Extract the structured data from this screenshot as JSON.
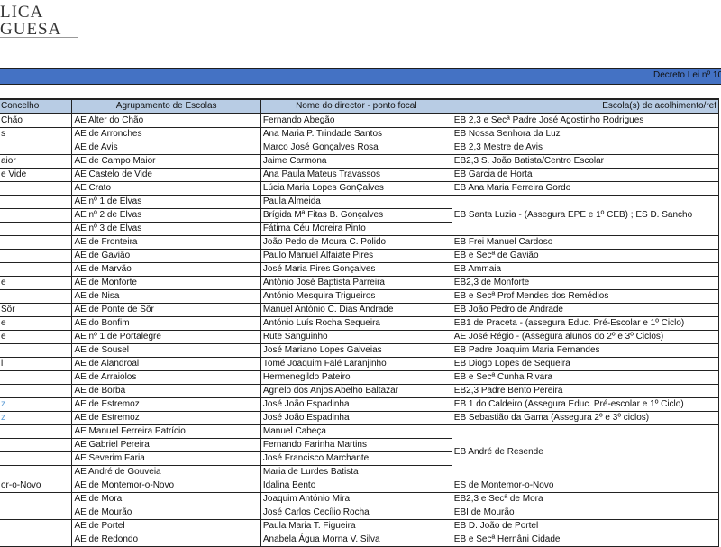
{
  "logo": {
    "line1": "LICA",
    "line2": "GUESA"
  },
  "banner": {
    "title": "Decreto Lei nº 10"
  },
  "table": {
    "headers": [
      "Concelho",
      "Agrupamento de Escolas",
      "Nome do director - ponto focal",
      "Escola(s) de acolhimento/ref"
    ],
    "rows": [
      {
        "concelho": "Chão",
        "agrupamento": "AE Alter do Chão",
        "director": "Fernando Abegão"
      },
      {
        "concelho": "s",
        "agrupamento": "AE de Arronches",
        "director": "Ana Maria P. Trindade Santos"
      },
      {
        "concelho": "",
        "agrupamento": "AE de Avis",
        "director": "Marco José Gonçalves Rosa"
      },
      {
        "concelho": "aior",
        "agrupamento": "AE de Campo Maior",
        "director": "Jaime Carmona"
      },
      {
        "concelho": "e Vide",
        "agrupamento": "AE Castelo de Vide",
        "director": "Ana Paula Mateus Travassos"
      },
      {
        "concelho": "",
        "agrupamento": "AE Crato",
        "director": "Lúcia Maria Lopes GonÇalves"
      },
      {
        "concelho": "",
        "agrupamento": "AE nº 1 de Elvas",
        "director": "Paula Almeida"
      },
      {
        "concelho": "",
        "agrupamento": "AE nº 2 de Elvas",
        "director": "Brígida Mª Fitas B. Gonçalves"
      },
      {
        "concelho": "",
        "agrupamento": "AE nº 3 de Elvas",
        "director": "Fátima Céu Moreira Pinto"
      },
      {
        "concelho": "",
        "agrupamento": "AE de Fronteira",
        "director": "João Pedo de Moura C. Polido"
      },
      {
        "concelho": "",
        "agrupamento": "AE de Gavião",
        "director": "Paulo Manuel Alfaiate Pires"
      },
      {
        "concelho": "",
        "agrupamento": "AE de Marvão",
        "director": "José Maria Pires Gonçalves"
      },
      {
        "concelho": "e",
        "agrupamento": "AE de Monforte",
        "director": "António José Baptista Parreira"
      },
      {
        "concelho": "",
        "agrupamento": "AE de Nisa",
        "director": "António Mesquira Trigueiros"
      },
      {
        "concelho": "Sôr",
        "agrupamento": "AE de Ponte de Sôr",
        "director": "Manuel António C. Dias Andrade"
      },
      {
        "concelho": "e",
        "agrupamento": "AE do Bonfim",
        "director": "António Luís Rocha Sequeira"
      },
      {
        "concelho": "e",
        "agrupamento": "AE nº 1 de Portalegre",
        "director": "Rute Sanguinho"
      },
      {
        "concelho": "",
        "agrupamento": "AE de Sousel",
        "director": "José Mariano Lopes Galveias"
      },
      {
        "concelho": "l",
        "agrupamento": "AE de Alandroal",
        "director": "Tomé Joaquim Falé Laranjinho"
      },
      {
        "concelho": "",
        "agrupamento": "AE de Arraiolos",
        "director": "Hermenegildo Pateiro"
      },
      {
        "concelho": "",
        "agrupamento": "AE de Borba",
        "director": "Agnelo dos Anjos Abelho Baltazar"
      },
      {
        "concelho": "z",
        "agrupamento": "AE de Estremoz",
        "director": "José João Espadinha"
      },
      {
        "concelho": "z",
        "agrupamento": "AE de Estremoz",
        "director": "José João Espadinha"
      },
      {
        "concelho": "",
        "agrupamento": "AE Manuel Ferreira Patrício",
        "director": "Manuel Cabeça"
      },
      {
        "concelho": "",
        "agrupamento": "AE Gabriel Pereira",
        "director": "Fernando Farinha Martins"
      },
      {
        "concelho": "",
        "agrupamento": "AE Severim Faria",
        "director": "José Francisco Marchante"
      },
      {
        "concelho": "",
        "agrupamento": "AE André de Gouveia",
        "director": "Maria de Lurdes Batista"
      },
      {
        "concelho": "or-o-Novo",
        "agrupamento": "AE de Montemor-o-Novo",
        "director": "Idalina Bento"
      },
      {
        "concelho": "",
        "agrupamento": "AE de Mora",
        "director": "Joaquim António Mira"
      },
      {
        "concelho": "",
        "agrupamento": "AE de Mourão",
        "director": "José Carlos Cecílio Rocha"
      },
      {
        "concelho": "",
        "agrupamento": "AE de Portel",
        "director": "Paula Maria T. Figueira"
      },
      {
        "concelho": "",
        "agrupamento": "AE de Redondo",
        "director": "Anabela Água Morna V. Silva"
      }
    ],
    "escolas": [
      {
        "text": "EB 2,3 e Secª Padre José Agostinho Rodrigues",
        "rows": 1
      },
      {
        "text": "EB Nossa Senhora da Luz",
        "rows": 1
      },
      {
        "text": "EB 2,3 Mestre de Avis",
        "rows": 1
      },
      {
        "text": "EB2,3 S. João Batista/Centro Escolar",
        "rows": 1
      },
      {
        "text": "EB Garcia de Horta",
        "rows": 1
      },
      {
        "text": "EB Ana Maria Ferreira Gordo",
        "rows": 1
      },
      {
        "text": "EB Santa Luzia - (Assegura EPE e 1º CEB) ; ES D. Sancho",
        "rows": 3
      },
      {
        "text": "EB Frei Manuel Cardoso",
        "rows": 1
      },
      {
        "text": "EB e Secª de Gavião",
        "rows": 1
      },
      {
        "text": "EB Ammaia",
        "rows": 1
      },
      {
        "text": "EB2,3 de Monforte",
        "rows": 1
      },
      {
        "text": "EB e Secª Prof Mendes dos Remédios",
        "rows": 1
      },
      {
        "text": "EB João Pedro de Andrade",
        "rows": 1
      },
      {
        "text": "EB1 de Praceta - (assegura Educ. Pré-Escolar e 1º Ciclo)",
        "rows": 1
      },
      {
        "text": "AE José Régio - (Assegura alunos do 2º e 3º Ciclos)",
        "rows": 1
      },
      {
        "text": "EB Padre Joaquim Maria Fernandes",
        "rows": 1
      },
      {
        "text": "EB Diogo Lopes de Sequeira",
        "rows": 1
      },
      {
        "text": "EB e Secª Cunha Rivara",
        "rows": 1
      },
      {
        "text": "EB2,3 Padre Bento Pereira",
        "rows": 1
      },
      {
        "text": "EB 1 do Caldeiro (Assegura Educ. Pré-escolar e 1º Ciclo)",
        "rows": 1
      },
      {
        "text": "EB Sebastião da Gama (Assegura  2º e 3º ciclos)",
        "rows": 1
      },
      {
        "text": "EB André de Resende",
        "rows": 4
      },
      {
        "text": "ES de Montemor-o-Novo",
        "rows": 1
      },
      {
        "text": "EB2,3 e Secª de Mora",
        "rows": 1
      },
      {
        "text": "EBI de Mourão",
        "rows": 1
      },
      {
        "text": "EB D. João de Portel",
        "rows": 1
      },
      {
        "text": "EB e Secª Hernâni Cidade",
        "rows": 1
      }
    ]
  },
  "colors": {
    "banner": "#4472c4",
    "header": "#b8cce4",
    "concelho_highlight": "#5b9bd5"
  }
}
